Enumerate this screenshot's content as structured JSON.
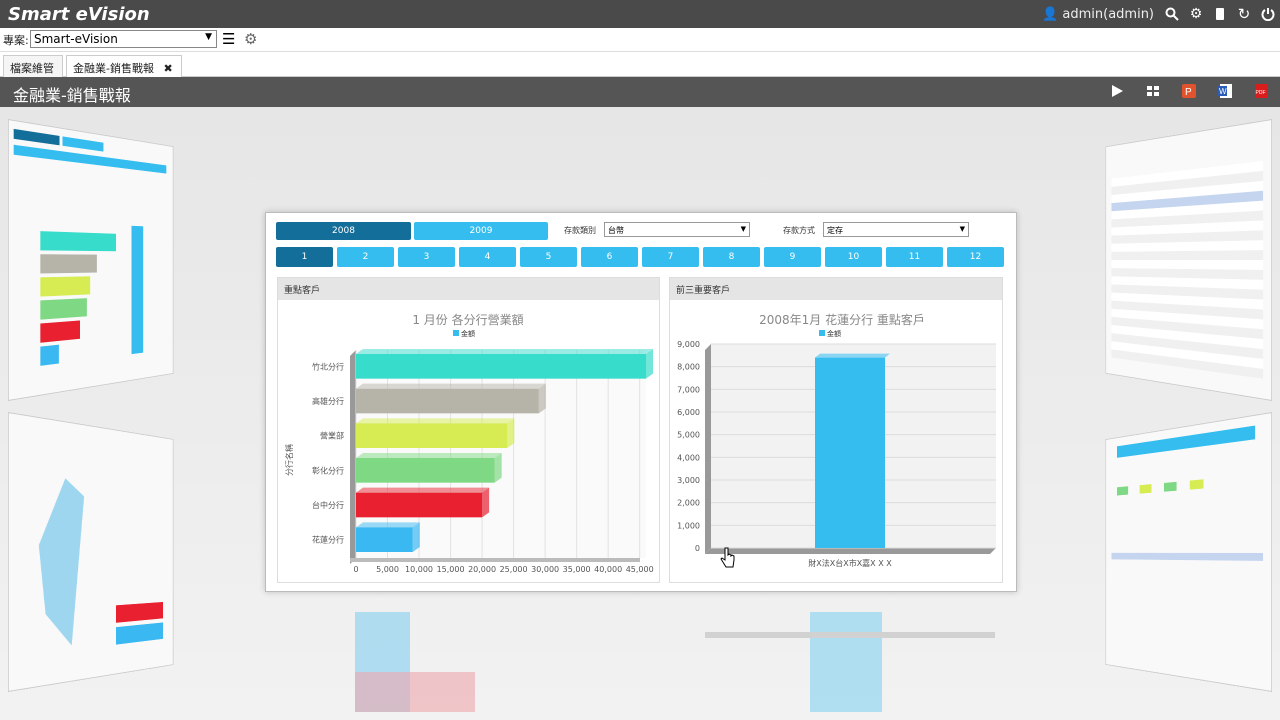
{
  "app": {
    "brand": "Smart eVision",
    "user": "admin(admin)"
  },
  "project": {
    "label": "專案:",
    "value": "Smart-eVision"
  },
  "tabs": [
    {
      "label": "檔案維管"
    },
    {
      "label": "金融業-銷售戰報"
    }
  ],
  "page_title": "金融業-銷售戰報",
  "filters": {
    "years": [
      "2008",
      "2009"
    ],
    "deposit_category_label": "存款類別",
    "deposit_category_value": "台幣",
    "deposit_method_label": "存款方式",
    "deposit_method_value": "定存",
    "months": [
      "1",
      "2",
      "3",
      "4",
      "5",
      "6",
      "7",
      "8",
      "9",
      "10",
      "11",
      "12"
    ]
  },
  "left_panel": {
    "head": "重點客戶"
  },
  "right_panel": {
    "head": "前三重要客戶"
  },
  "chart_data": [
    {
      "type": "bar",
      "orientation": "horizontal",
      "title": "1 月份 各分行營業額",
      "legend": "金額",
      "ylabel": "分行名稱",
      "categories": [
        "竹北分行",
        "高雄分行",
        "營業部",
        "彰化分行",
        "台中分行",
        "花蓮分行"
      ],
      "values": [
        46000,
        29000,
        24000,
        22000,
        20000,
        9000
      ],
      "colors": [
        "#37dccb",
        "#b6b4a9",
        "#d6ec52",
        "#7fd884",
        "#e8202f",
        "#3ab8f2"
      ],
      "xticks": [
        "0",
        "5,000",
        "10,000",
        "15,000",
        "20,000",
        "25,000",
        "30,000",
        "35,000",
        "40,000",
        "45,000"
      ],
      "xlim": [
        0,
        46000
      ]
    },
    {
      "type": "bar",
      "title": "2008年1月 花蓮分行 重點客戶",
      "legend": "金額",
      "categories": [
        "財X法X台X市X嘉X X X"
      ],
      "values": [
        8400
      ],
      "yticks": [
        "9,000",
        "8,000",
        "7,000",
        "6,000",
        "5,000",
        "4,000",
        "3,000",
        "2,000",
        "1,000",
        "0"
      ],
      "ylim": [
        0,
        9000
      ],
      "color": "#35bdf0"
    }
  ]
}
